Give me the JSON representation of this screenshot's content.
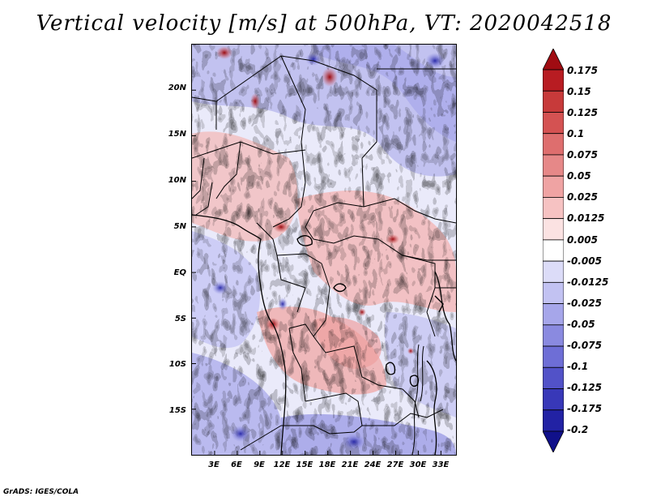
{
  "title": "Vertical velocity [m/s] at 500hPa, VT: 2020042518",
  "credit": "GrADS: IGES/COLA",
  "map": {
    "lat_range": [
      -20,
      25
    ],
    "lon_range": [
      0,
      35
    ],
    "lat_labels": [
      "20N",
      "15N",
      "10N",
      "5N",
      "EQ",
      "5S",
      "10S",
      "15S"
    ],
    "lat_values": [
      20,
      15,
      10,
      5,
      0,
      -5,
      -10,
      -15
    ],
    "lon_labels": [
      "3E",
      "6E",
      "9E",
      "12E",
      "15E",
      "18E",
      "21E",
      "24E",
      "27E",
      "30E",
      "33E"
    ],
    "lon_values": [
      3,
      6,
      9,
      12,
      15,
      18,
      21,
      24,
      27,
      30,
      33
    ]
  },
  "colorbar": {
    "labels": [
      "0.175",
      "0.15",
      "0.125",
      "0.1",
      "0.075",
      "0.05",
      "0.025",
      "0.0125",
      "0.005",
      "-0.005",
      "-0.0125",
      "-0.025",
      "-0.05",
      "-0.075",
      "-0.1",
      "-0.125",
      "-0.175",
      "-0.2"
    ],
    "colors": [
      "#a00c12",
      "#b81c22",
      "#c73a3a",
      "#d45252",
      "#de6e6e",
      "#e68888",
      "#efa3a3",
      "#f6c2c2",
      "#fbe2e2",
      "#ffffff",
      "#dcdcf8",
      "#c2c2f2",
      "#a6a6ea",
      "#8a8ae0",
      "#6e6ed6",
      "#5252c8",
      "#3838b8",
      "#2222a4",
      "#10108a"
    ]
  }
}
